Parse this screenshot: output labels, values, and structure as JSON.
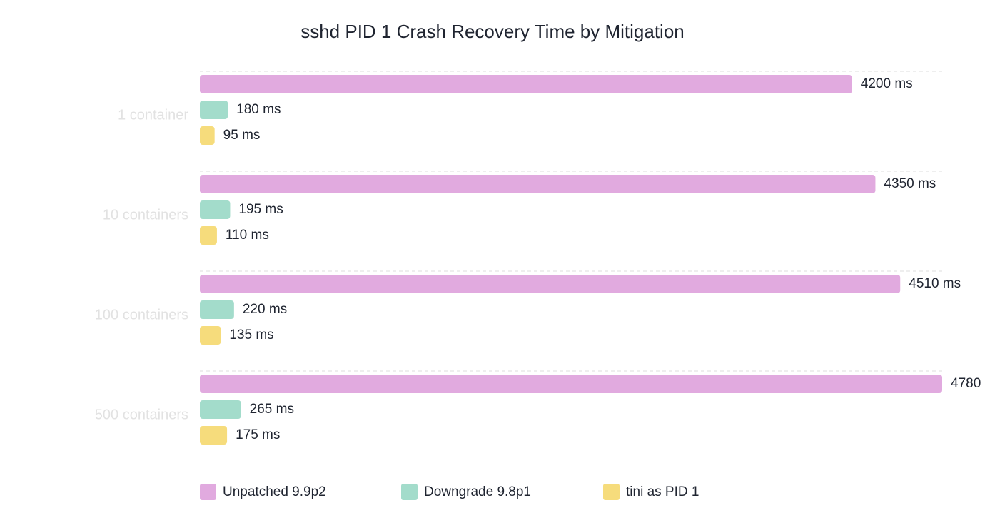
{
  "chart_data": {
    "type": "hbar",
    "title": "sshd PID 1 Crash Recovery Time by Mitigation",
    "categories": [
      "1 container",
      "10 containers",
      "100 containers",
      "500 containers"
    ],
    "series": [
      {
        "name": "Unpatched 9.9p2",
        "color": "#e1aadf",
        "values": [
          4200,
          4350,
          4510,
          4780
        ],
        "value_labels": [
          "4200 ms",
          "4350 ms",
          "4510 ms",
          "4780"
        ]
      },
      {
        "name": "Downgrade 9.8p1",
        "color": "#a3dccb",
        "values": [
          180,
          195,
          220,
          265
        ],
        "value_labels": [
          "180 ms",
          "195 ms",
          "220 ms",
          "265 ms"
        ]
      },
      {
        "name": "tini as PID 1",
        "color": "#f6dc7c",
        "values": [
          95,
          110,
          135,
          175
        ],
        "value_labels": [
          "95 ms",
          "110 ms",
          "135 ms",
          "175 ms"
        ]
      }
    ]
  }
}
